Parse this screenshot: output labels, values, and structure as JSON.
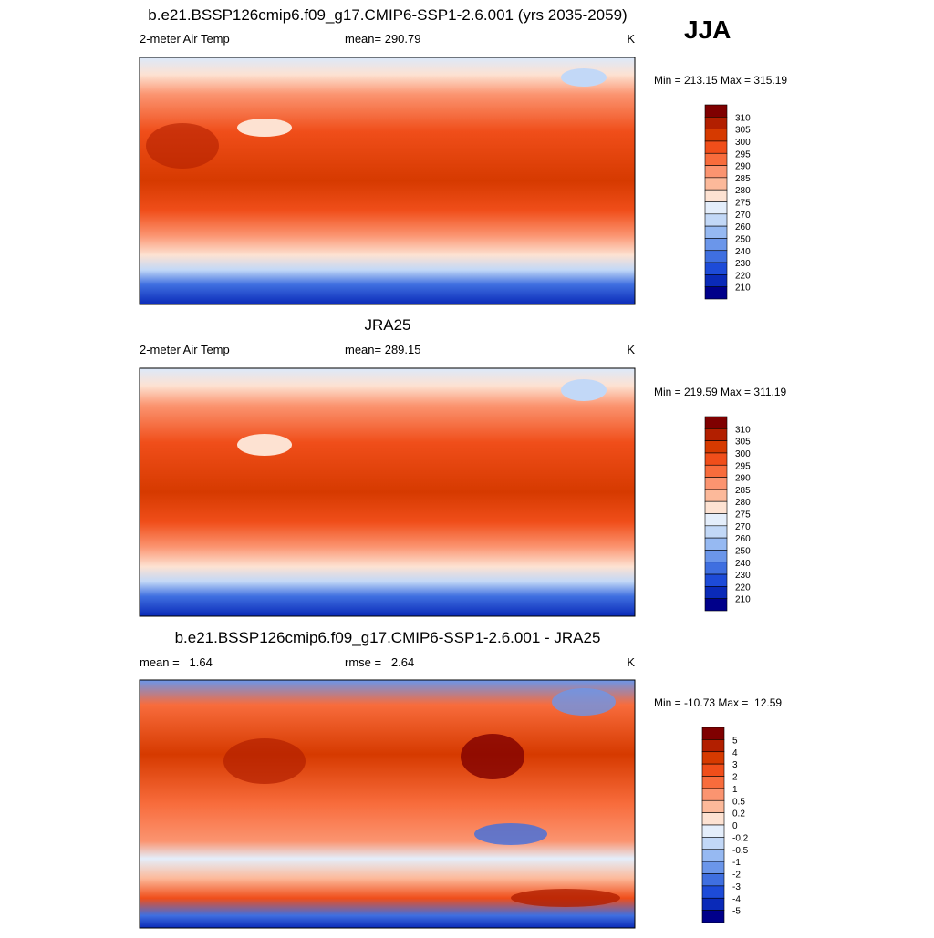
{
  "season": "JJA",
  "panels": [
    {
      "title": "b.e21.BSSP126cmip6.f09_g17.CMIP6-SSP1-2.6.001 (yrs 2035-2059)",
      "left": "2-meter Air Temp",
      "center": "mean= 290.79",
      "units": "K",
      "range": "Min = 213.15 Max = 315.19",
      "colorbar": {
        "labels": [
          310,
          305,
          300,
          295,
          290,
          285,
          280,
          275,
          270,
          260,
          250,
          240,
          230,
          220,
          210
        ],
        "colors": [
          "#7f0000",
          "#b21f00",
          "#d63a00",
          "#f04e1a",
          "#f86c3c",
          "#fb9470",
          "#fcb99a",
          "#fde2d2",
          "#e4eefb",
          "#c2d8f7",
          "#96b9f2",
          "#6b96ea",
          "#3f6fe0",
          "#1d4bd8",
          "#0a2ab8",
          "#00008a"
        ]
      }
    },
    {
      "title": "JRA25",
      "left": "2-meter Air Temp",
      "center": "mean= 289.15",
      "units": "K",
      "range": "Min = 219.59 Max = 311.19",
      "colorbar": {
        "labels": [
          310,
          305,
          300,
          295,
          290,
          285,
          280,
          275,
          270,
          260,
          250,
          240,
          230,
          220,
          210
        ],
        "colors": [
          "#7f0000",
          "#b21f00",
          "#d63a00",
          "#f04e1a",
          "#f86c3c",
          "#fb9470",
          "#fcb99a",
          "#fde2d2",
          "#e4eefb",
          "#c2d8f7",
          "#96b9f2",
          "#6b96ea",
          "#3f6fe0",
          "#1d4bd8",
          "#0a2ab8",
          "#00008a"
        ]
      }
    },
    {
      "title": "b.e21.BSSP126cmip6.f09_g17.CMIP6-SSP1-2.6.001 - JRA25",
      "left": "mean =   1.64",
      "center": "rmse =   2.64",
      "units": "K",
      "range": "Min = -10.73 Max =  12.59",
      "colorbar": {
        "labels": [
          5,
          4,
          3,
          2,
          1,
          0.5,
          0.2,
          0,
          -0.2,
          -0.5,
          -1,
          -2,
          -3,
          -4,
          -5
        ],
        "colors": [
          "#7f0000",
          "#b21f00",
          "#d63a00",
          "#f04e1a",
          "#f86c3c",
          "#fb9470",
          "#fcb99a",
          "#fde2d2",
          "#e4eefb",
          "#c2d8f7",
          "#96b9f2",
          "#6b96ea",
          "#3f6fe0",
          "#1d4bd8",
          "#0a2ab8",
          "#00008a"
        ]
      }
    }
  ]
}
